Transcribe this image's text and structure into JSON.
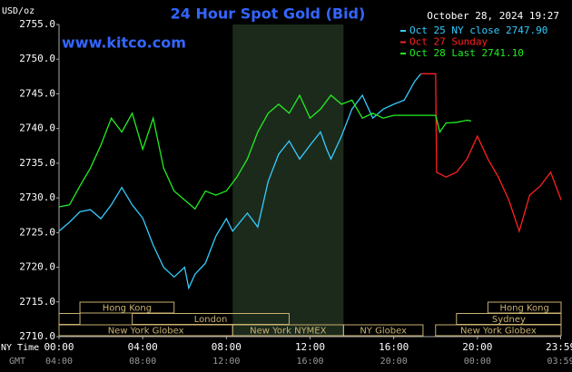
{
  "chart_data": {
    "type": "line",
    "title": "24 Hour Spot Gold (Bid)",
    "date": "October 28, 2024 19:27",
    "ylabel": "USD/oz",
    "watermark": "www.kitco.com",
    "xlabel": "NY Time",
    "x2label": "GMT",
    "xlim": [
      0,
      24
    ],
    "xticks": [
      {
        "value": 0,
        "label": "00:00"
      },
      {
        "value": 4,
        "label": "04:00"
      },
      {
        "value": 8,
        "label": "08:00"
      },
      {
        "value": 12,
        "label": "12:00"
      },
      {
        "value": 16,
        "label": "16:00"
      },
      {
        "value": 20,
        "label": "20:00"
      },
      {
        "value": 23.98,
        "label": "23:59"
      }
    ],
    "gmt_ticklabels": [
      "04:00",
      "08:00",
      "12:00",
      "16:00",
      "20:00",
      "00:00",
      "03:59"
    ],
    "ylim": [
      2710,
      2755
    ],
    "yticks": [
      {
        "value": 2710,
        "label": "2710.0"
      },
      {
        "value": 2715,
        "label": "2715.0"
      },
      {
        "value": 2720,
        "label": "2720.0"
      },
      {
        "value": 2725,
        "label": "2725.0"
      },
      {
        "value": 2730,
        "label": "2730.0"
      },
      {
        "value": 2735,
        "label": "2735.0"
      },
      {
        "value": 2740,
        "label": "2740.0"
      },
      {
        "value": 2745,
        "label": "2745.0"
      },
      {
        "value": 2750,
        "label": "2750.0"
      },
      {
        "value": 2755,
        "label": "2755.0"
      }
    ],
    "highlight": {
      "start": 8.3,
      "end": 13.6
    },
    "legend": "top-right",
    "sessions": [
      {
        "name": "Hong Kong",
        "start": 1,
        "end": 5.5,
        "row": 0
      },
      {
        "name": "Hong Kong",
        "start": 20.5,
        "end": 24,
        "row": 0
      },
      {
        "start": 0,
        "end": 1,
        "row": 1
      },
      {
        "name": "London",
        "start": 3.5,
        "end": 11,
        "row": 1
      },
      {
        "name": "Sydney",
        "start": 19,
        "end": 24,
        "row": 1
      },
      {
        "name": "New York Globex",
        "start": 0,
        "end": 8.3,
        "row": 2
      },
      {
        "name": "New York NYMEX",
        "start": 8.3,
        "end": 13.6,
        "row": 2
      },
      {
        "name": "NY Globex",
        "start": 13.6,
        "end": 17.4,
        "row": 2
      },
      {
        "name": "New York Globex",
        "start": 18,
        "end": 24,
        "row": 2
      }
    ],
    "series": [
      {
        "name": "Oct 25 NY close 2747.90",
        "color": "#33ccff",
        "x": [
          0,
          0.5,
          1,
          1.5,
          2,
          2.5,
          3,
          3.5,
          4,
          4.5,
          5,
          5.5,
          6,
          6.2,
          6.5,
          7,
          7.5,
          8,
          8.3,
          9,
          9.5,
          10,
          10.5,
          11,
          11.5,
          12,
          12.5,
          12.8,
          13,
          13.5,
          14,
          14.5,
          15,
          15.5,
          16,
          16.5,
          17,
          17.3
        ],
        "values": [
          2725.2,
          2726.5,
          2728,
          2728.3,
          2727,
          2729,
          2731.5,
          2729,
          2727.1,
          2723.2,
          2720,
          2718.6,
          2720,
          2717,
          2719,
          2720.6,
          2724.5,
          2727,
          2725.2,
          2727.8,
          2725.8,
          2732.4,
          2736.3,
          2738.2,
          2735.6,
          2737.6,
          2739.5,
          2737,
          2735.6,
          2738.9,
          2742.8,
          2744.8,
          2741.5,
          2742.8,
          2743.5,
          2744.1,
          2746.8,
          2747.9
        ]
      },
      {
        "name": "Oct 27 Sunday",
        "color": "#ff2020",
        "x": [
          17.3,
          18,
          18.05,
          18.5,
          19,
          19.5,
          20,
          20.5,
          21,
          21.5,
          22,
          22.5,
          23,
          23.5,
          24
        ],
        "values": [
          2747.9,
          2747.9,
          2733.7,
          2733,
          2733.7,
          2735.6,
          2738.9,
          2735.6,
          2733,
          2729.7,
          2725.2,
          2730.4,
          2731.7,
          2733.7,
          2729.7
        ]
      },
      {
        "name": "Oct 28 Last 2741.10",
        "color": "#22ee22",
        "x": [
          0,
          0.5,
          1,
          1.5,
          2,
          2.5,
          3,
          3.5,
          4,
          4.5,
          5,
          5.5,
          6,
          6.5,
          7,
          7.5,
          8,
          8.5,
          9,
          9.5,
          10,
          10.5,
          11,
          11.5,
          12,
          12.5,
          13,
          13.5,
          14,
          14.5,
          15,
          15.5,
          16,
          18,
          18.2,
          18.5,
          19,
          19.5,
          19.7
        ],
        "values": [
          2728.7,
          2729,
          2731.7,
          2734.3,
          2737.6,
          2741.5,
          2739.5,
          2742.2,
          2737,
          2741.5,
          2734.3,
          2731,
          2729.7,
          2728.4,
          2731,
          2730.4,
          2731,
          2733,
          2735.6,
          2739.5,
          2742.2,
          2743.5,
          2742.2,
          2744.8,
          2741.5,
          2742.8,
          2744.8,
          2743.5,
          2744.1,
          2741.5,
          2742.2,
          2741.5,
          2741.9,
          2741.9,
          2739.5,
          2740.8,
          2740.9,
          2741.2,
          2741.1
        ]
      }
    ]
  }
}
